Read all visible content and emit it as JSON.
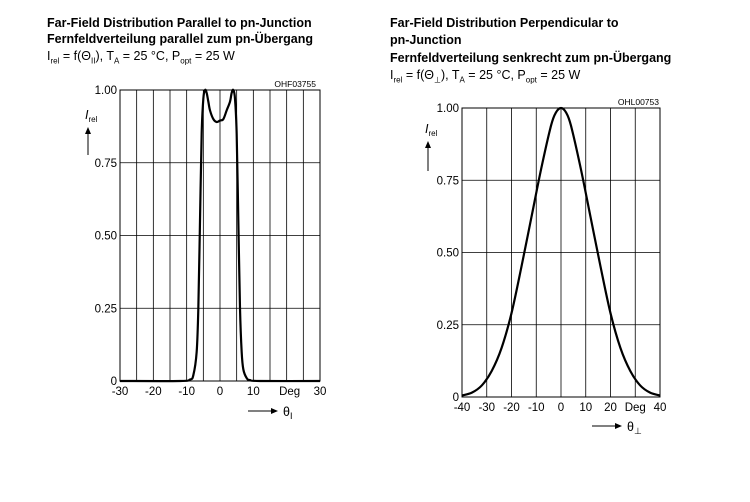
{
  "left": {
    "title_en": "Far-Field Distribution Parallel to pn-Junction",
    "title_de": "Fernfeldverteilung parallel zum pn-Übergang",
    "formula": {
      "lhs": "I",
      "lhs_sub": "rel",
      "mid1": " = f(Θ",
      "theta_sub": "II",
      "mid2": "), T",
      "t_sub": "A",
      "mid3": " = 25 °C, P",
      "p_sub": "opt",
      "rhs": " = 25 W"
    },
    "ref_code": "OHF03755",
    "ylabel": "I",
    "ylabel_sub": "rel",
    "xlabel": "θ",
    "xlabel_sub": "I",
    "x_tick_labels": [
      "-30",
      "-20",
      "-10",
      "0",
      "10",
      "Deg",
      "30"
    ],
    "y_tick_labels": [
      "0",
      "0.25",
      "0.50",
      "0.75",
      "1.00"
    ]
  },
  "right": {
    "title_en": "Far-Field Distribution Perpendicular to",
    "title_en2": "pn-Junction",
    "title_de": "Fernfeldverteilung senkrecht zum pn-Übergang",
    "formula": {
      "lhs": "I",
      "lhs_sub": "rel",
      "mid1": " = f(Θ",
      "theta_sub": "⊥",
      "mid2": "), T",
      "t_sub": "A",
      "mid3": " = 25 °C, P",
      "p_sub": "opt",
      "rhs": " = 25 W"
    },
    "ref_code": "OHL00753",
    "ylabel": "I",
    "ylabel_sub": "rel",
    "xlabel": "θ",
    "xlabel_sub": "⊥",
    "x_tick_labels": [
      "-40",
      "-30",
      "-20",
      "-10",
      "0",
      "10",
      "20",
      "Deg",
      "40"
    ],
    "y_tick_labels": [
      "0",
      "0.25",
      "0.50",
      "0.75",
      "1.00"
    ]
  },
  "chart_data": [
    {
      "type": "line",
      "xlim": [
        -30,
        30
      ],
      "ylim": [
        0,
        1
      ],
      "x_gridlines": [
        -30,
        -25,
        -20,
        -15,
        -10,
        -5,
        0,
        5,
        10,
        15,
        20,
        25,
        30
      ],
      "y_gridlines": [
        0,
        0.25,
        0.5,
        0.75,
        1.0
      ],
      "grid": true,
      "series": [
        {
          "x": [
            -30,
            -12,
            -9,
            -8,
            -7,
            -6.5,
            -6,
            -5.5,
            -5,
            -4.5,
            -4,
            -3.5,
            -3,
            -2,
            -1,
            0,
            1,
            2,
            3,
            3.5,
            4,
            4.5,
            5,
            5.5,
            6,
            6.5,
            7,
            8,
            9,
            12,
            30
          ],
          "y": [
            0,
            0,
            0.005,
            0.02,
            0.1,
            0.25,
            0.55,
            0.85,
            0.97,
            1.0,
            0.99,
            0.96,
            0.93,
            0.9,
            0.89,
            0.895,
            0.9,
            0.93,
            0.96,
            0.99,
            1.0,
            0.97,
            0.85,
            0.55,
            0.25,
            0.1,
            0.04,
            0.01,
            0.003,
            0,
            0
          ]
        }
      ]
    },
    {
      "type": "line",
      "xlim": [
        -40,
        40
      ],
      "ylim": [
        0,
        1
      ],
      "x_gridlines": [
        -40,
        -30,
        -20,
        -10,
        0,
        10,
        20,
        30,
        40
      ],
      "y_gridlines": [
        0,
        0.25,
        0.5,
        0.75,
        1.0
      ],
      "grid": true,
      "series": [
        {
          "x": [
            -40,
            -36,
            -32,
            -28,
            -24,
            -20,
            -16,
            -12,
            -8,
            -4,
            -2,
            0,
            2,
            4,
            8,
            12,
            16,
            20,
            24,
            28,
            32,
            36,
            40
          ],
          "y": [
            0.005,
            0.015,
            0.04,
            0.09,
            0.17,
            0.29,
            0.45,
            0.62,
            0.79,
            0.94,
            0.985,
            1.0,
            0.985,
            0.94,
            0.79,
            0.62,
            0.45,
            0.29,
            0.17,
            0.09,
            0.04,
            0.015,
            0.005
          ]
        }
      ]
    }
  ]
}
